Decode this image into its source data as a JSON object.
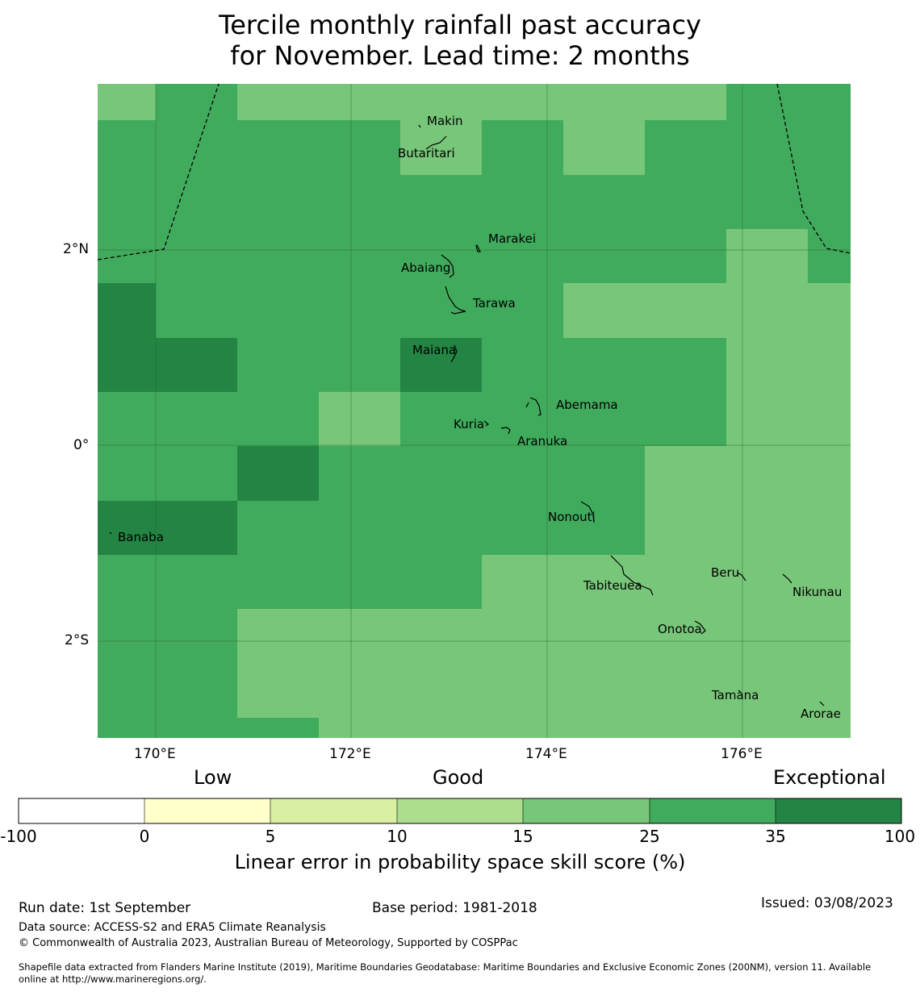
{
  "title_line1": "Tercile monthly rainfall past accuracy",
  "title_line2": "for November. Lead time: 2 months",
  "colors": {
    "c15_25": "#78c679",
    "c25_35": "#41ab5d",
    "c35_100": "#238443",
    "c10_15": "#addd8e",
    "c5_10": "#d9f0a3",
    "c0_5": "#ffffcc",
    "cneg": "#ffffff"
  },
  "axes": {
    "x_ticks": [
      "170°E",
      "172°E",
      "174°E",
      "176°E"
    ],
    "y_ticks": [
      "2°N",
      "0°",
      "2°S"
    ]
  },
  "islands": [
    {
      "name": "Makin"
    },
    {
      "name": "Butaritari"
    },
    {
      "name": "Marakei"
    },
    {
      "name": "Abaiang"
    },
    {
      "name": "Tarawa"
    },
    {
      "name": "Maiana"
    },
    {
      "name": "Abemama"
    },
    {
      "name": "Kuria"
    },
    {
      "name": "Aranuka"
    },
    {
      "name": "Nonouti"
    },
    {
      "name": "Banaba"
    },
    {
      "name": "Beru"
    },
    {
      "name": "Tabiteuea"
    },
    {
      "name": "Nikunau"
    },
    {
      "name": "Onotoa"
    },
    {
      "name": "Tamana"
    },
    {
      "name": "Arorae"
    }
  ],
  "colorbar": {
    "headings": [
      "Low",
      "Good",
      "Exceptional"
    ],
    "ticks": [
      "-100",
      "0",
      "5",
      "10",
      "15",
      "25",
      "35",
      "100"
    ],
    "label": "Linear error in probability space skill score (%)"
  },
  "footer": {
    "run_date": "Run date: 1st September",
    "base_period": "Base period: 1981-2018",
    "issued": "Issued: 03/08/2023",
    "source": "Data source: ACCESS-S2 and ERA5 Climate Reanalysis",
    "copyright": "© Commonwealth of Australia 2023, Australian Bureau of Meteorology, Supported by COSPPac",
    "shapefile1": "Shapefile data extracted from Flanders Marine Institute (2019), Maritime Boundaries Geodatabase: Maritime Boundaries and Exclusive Economic Zones (200NM), version 11. Available",
    "shapefile2": "online at http://www.marineregions.org/."
  }
}
